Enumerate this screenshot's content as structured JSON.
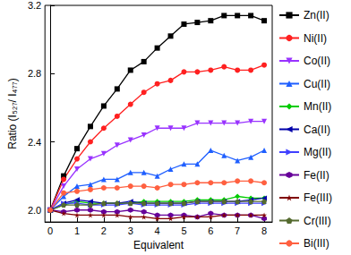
{
  "chart_data": {
    "type": "line",
    "x_label": "Equivalent",
    "y_label": "Ratio (I₅₂₇/ I₄₇₇)",
    "x": [
      0,
      0.5,
      1,
      1.5,
      2,
      2.5,
      3,
      3.5,
      4,
      4.5,
      5,
      5.5,
      6,
      6.5,
      7,
      7.5,
      8
    ],
    "xlim": [
      -0.2,
      8.3
    ],
    "xticks": [
      0,
      1,
      2,
      3,
      4,
      5,
      6,
      7,
      8
    ],
    "ylim": [
      1.93,
      3.2
    ],
    "yticks": [
      {
        "value": 2,
        "label": "2.0"
      },
      {
        "value": 2.4,
        "label": "2.4"
      },
      {
        "value": 2.8,
        "label": "2.8"
      },
      {
        "value": 3.2,
        "label": "3.2"
      }
    ],
    "grid": false,
    "legend": "right",
    "series": [
      {
        "name": "Zn(II)",
        "color": "#000000",
        "marker": "square",
        "values": [
          2.0,
          2.2,
          2.36,
          2.49,
          2.61,
          2.71,
          2.82,
          2.87,
          2.95,
          3.02,
          3.09,
          3.1,
          3.11,
          3.14,
          3.14,
          3.14,
          3.11
        ]
      },
      {
        "name": "Ni(II)",
        "color": "#ff2020",
        "marker": "circle",
        "values": [
          2.0,
          2.18,
          2.3,
          2.4,
          2.48,
          2.55,
          2.62,
          2.69,
          2.74,
          2.76,
          2.81,
          2.81,
          2.82,
          2.84,
          2.82,
          2.82,
          2.85
        ]
      },
      {
        "name": "Co(II)",
        "color": "#9933ff",
        "marker": "triangle_down",
        "values": [
          2.0,
          2.14,
          2.24,
          2.3,
          2.33,
          2.38,
          2.41,
          2.44,
          2.48,
          2.48,
          2.48,
          2.51,
          2.51,
          2.51,
          2.51,
          2.52,
          2.52
        ]
      },
      {
        "name": "Cu(II)",
        "color": "#1f5fff",
        "marker": "triangle",
        "values": [
          2.0,
          2.08,
          2.14,
          2.15,
          2.18,
          2.18,
          2.22,
          2.22,
          2.2,
          2.24,
          2.27,
          2.27,
          2.35,
          2.32,
          2.29,
          2.31,
          2.35
        ]
      },
      {
        "name": "Mn(II)",
        "color": "#00cc00",
        "marker": "diamond",
        "values": [
          2.0,
          2.03,
          2.05,
          2.04,
          2.04,
          2.04,
          2.04,
          2.05,
          2.05,
          2.05,
          2.05,
          2.06,
          2.06,
          2.06,
          2.08,
          2.07,
          2.07
        ]
      },
      {
        "name": "Ca(II)",
        "color": "#0000aa",
        "marker": "triangle_left",
        "values": [
          2.0,
          2.04,
          2.06,
          2.05,
          2.04,
          2.04,
          2.05,
          2.04,
          2.04,
          2.04,
          2.04,
          2.05,
          2.05,
          2.05,
          2.05,
          2.06,
          2.07
        ]
      },
      {
        "name": "Mg(II)",
        "color": "#4040ff",
        "marker": "triangle_right",
        "values": [
          2.0,
          2.04,
          2.04,
          2.03,
          2.03,
          2.03,
          2.04,
          2.03,
          2.03,
          2.03,
          2.03,
          2.04,
          2.04,
          2.04,
          2.04,
          2.04,
          2.04
        ]
      },
      {
        "name": "Fe(II)",
        "color": "#660099",
        "marker": "hexagon",
        "values": [
          2.0,
          1.99,
          2.0,
          2.0,
          1.99,
          1.99,
          2.0,
          1.99,
          1.97,
          1.97,
          1.97,
          1.96,
          1.98,
          1.97,
          1.97,
          1.97,
          1.95
        ]
      },
      {
        "name": "Fe(III)",
        "color": "#800000",
        "marker": "star",
        "values": [
          2.0,
          1.98,
          1.97,
          1.97,
          1.97,
          1.97,
          1.96,
          1.96,
          1.95,
          1.95,
          1.96,
          1.96,
          1.96,
          1.97,
          1.97,
          1.97,
          1.97
        ]
      },
      {
        "name": "Cr(III)",
        "color": "#556b2f",
        "marker": "pentagon",
        "values": [
          2.0,
          2.03,
          2.03,
          2.03,
          2.04,
          2.04,
          2.04,
          2.04,
          2.04,
          2.04,
          2.04,
          2.05,
          2.05,
          2.05,
          2.05,
          2.05,
          2.05
        ]
      },
      {
        "name": "Bi(III)",
        "color": "#ff6040",
        "marker": "circle",
        "values": [
          2.0,
          2.1,
          2.11,
          2.12,
          2.13,
          2.13,
          2.14,
          2.14,
          2.13,
          2.15,
          2.15,
          2.16,
          2.16,
          2.16,
          2.17,
          2.17,
          2.16
        ]
      }
    ]
  }
}
